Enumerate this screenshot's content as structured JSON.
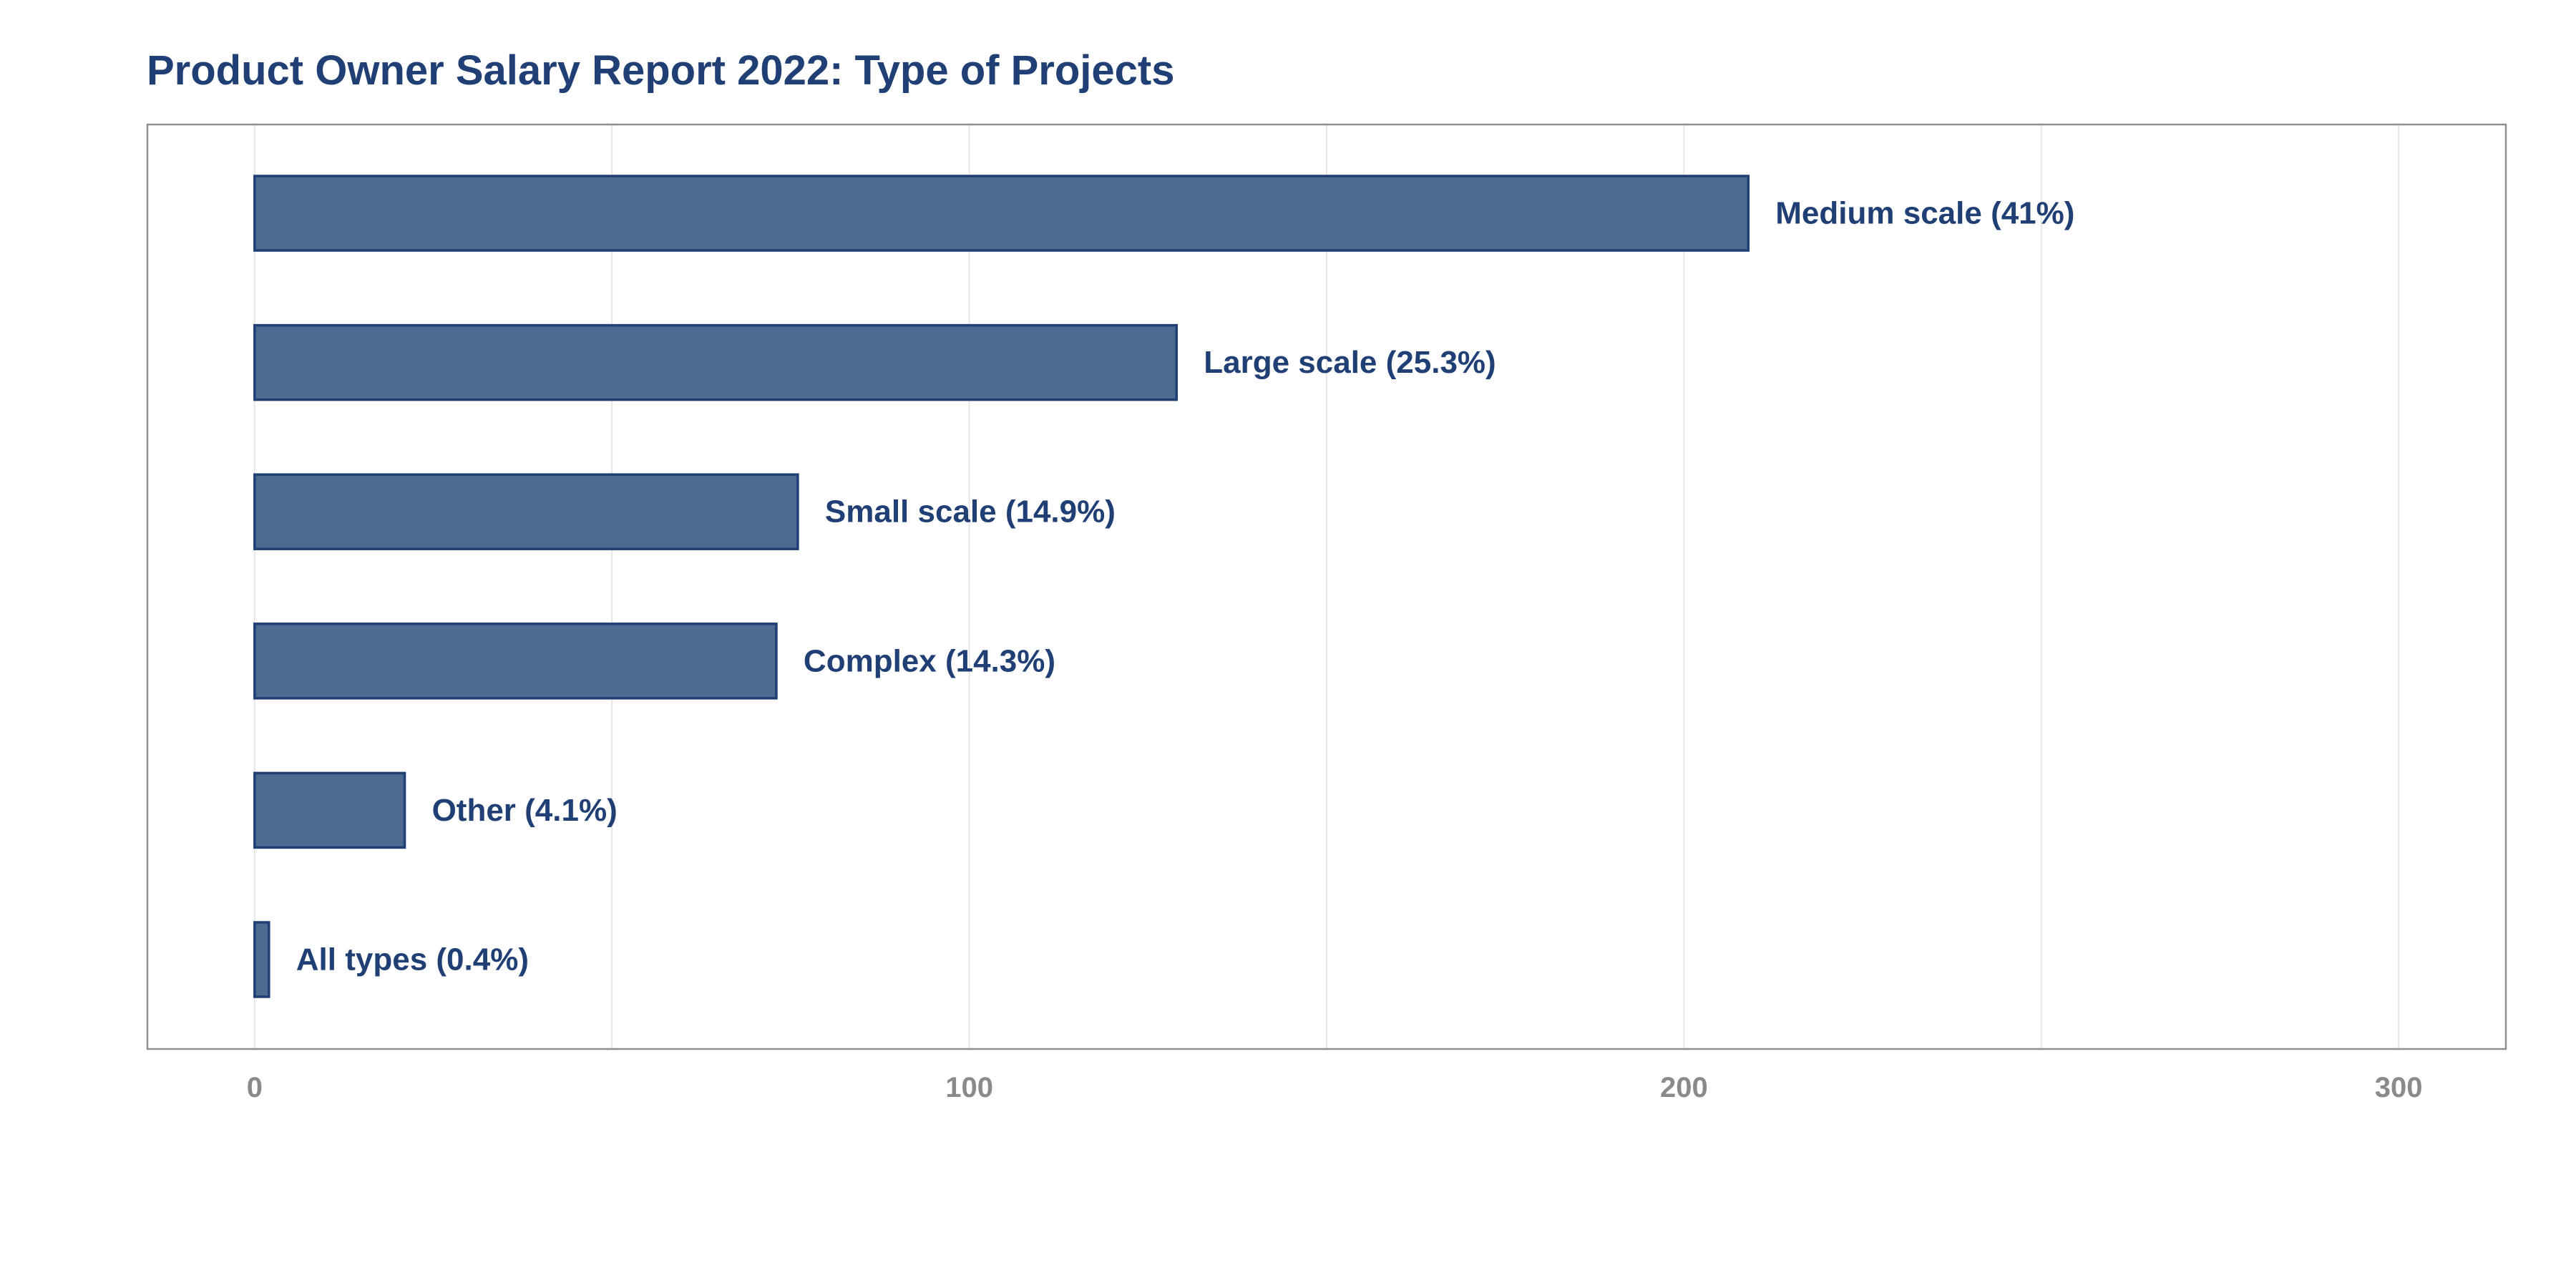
{
  "chart_data": {
    "type": "bar",
    "orientation": "horizontal",
    "title": "Product Owner Salary Report 2022: Type of Projects",
    "xlabel": "",
    "ylabel": "",
    "xlim": [
      -15,
      315
    ],
    "x_ticks": [
      0,
      100,
      200,
      300
    ],
    "grid": "vertical major and minor",
    "legend": "none",
    "bar_fill_color": "#4d6a90",
    "bar_edge_color": "#1f3f75",
    "label_color": "#1f3f75",
    "categories": [
      "Medium scale",
      "Large scale",
      "Small scale",
      "Complex",
      "Other",
      "All types"
    ],
    "values": [
      209,
      129,
      76,
      73,
      21,
      2
    ],
    "labels": [
      "Medium scale (41%)",
      "Large scale (25.3%)",
      "Small scale (14.9%)",
      "Complex (14.3%)",
      "Other (4.1%)",
      "All types (0.4%)"
    ]
  }
}
